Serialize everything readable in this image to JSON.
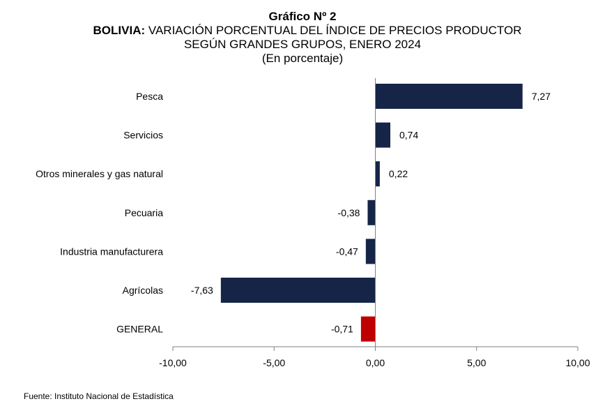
{
  "chart_title": "Gráfico Nº 2",
  "subtitle_bold": "BOLIVIA:",
  "subtitle_line1": "VARIACIÓN PORCENTUAL DEL ÍNDICE DE PRECIOS PRODUCTOR",
  "subtitle_line2": "SEGÚN GRANDES GRUPOS, ENERO 2024",
  "subtitle_line3": "(En porcentaje)",
  "source": "Fuente: Instituto Nacional de Estadística",
  "colors": {
    "bar": "#162547",
    "highlight": "#c00000"
  },
  "chart_data": {
    "type": "bar",
    "orientation": "horizontal",
    "categories": [
      "Pesca",
      "Servicios",
      "Otros minerales y gas natural",
      "Pecuaria",
      "Industria manufacturera",
      "Agrícolas",
      "GENERAL"
    ],
    "values": [
      7.27,
      0.74,
      0.22,
      -0.38,
      -0.47,
      -7.63,
      -0.71
    ],
    "value_labels": [
      "7,27",
      "0,74",
      "0,22",
      "-0,38",
      "-0,47",
      "-7,63",
      "-0,71"
    ],
    "highlight_category": "GENERAL",
    "xlim": [
      -10,
      10
    ],
    "x_ticks": [
      -10,
      -5,
      0,
      5,
      10
    ],
    "x_tick_labels": [
      "-10,00",
      "-5,00",
      "0,00",
      "5,00",
      "10,00"
    ],
    "grid": false,
    "legend": "none"
  }
}
